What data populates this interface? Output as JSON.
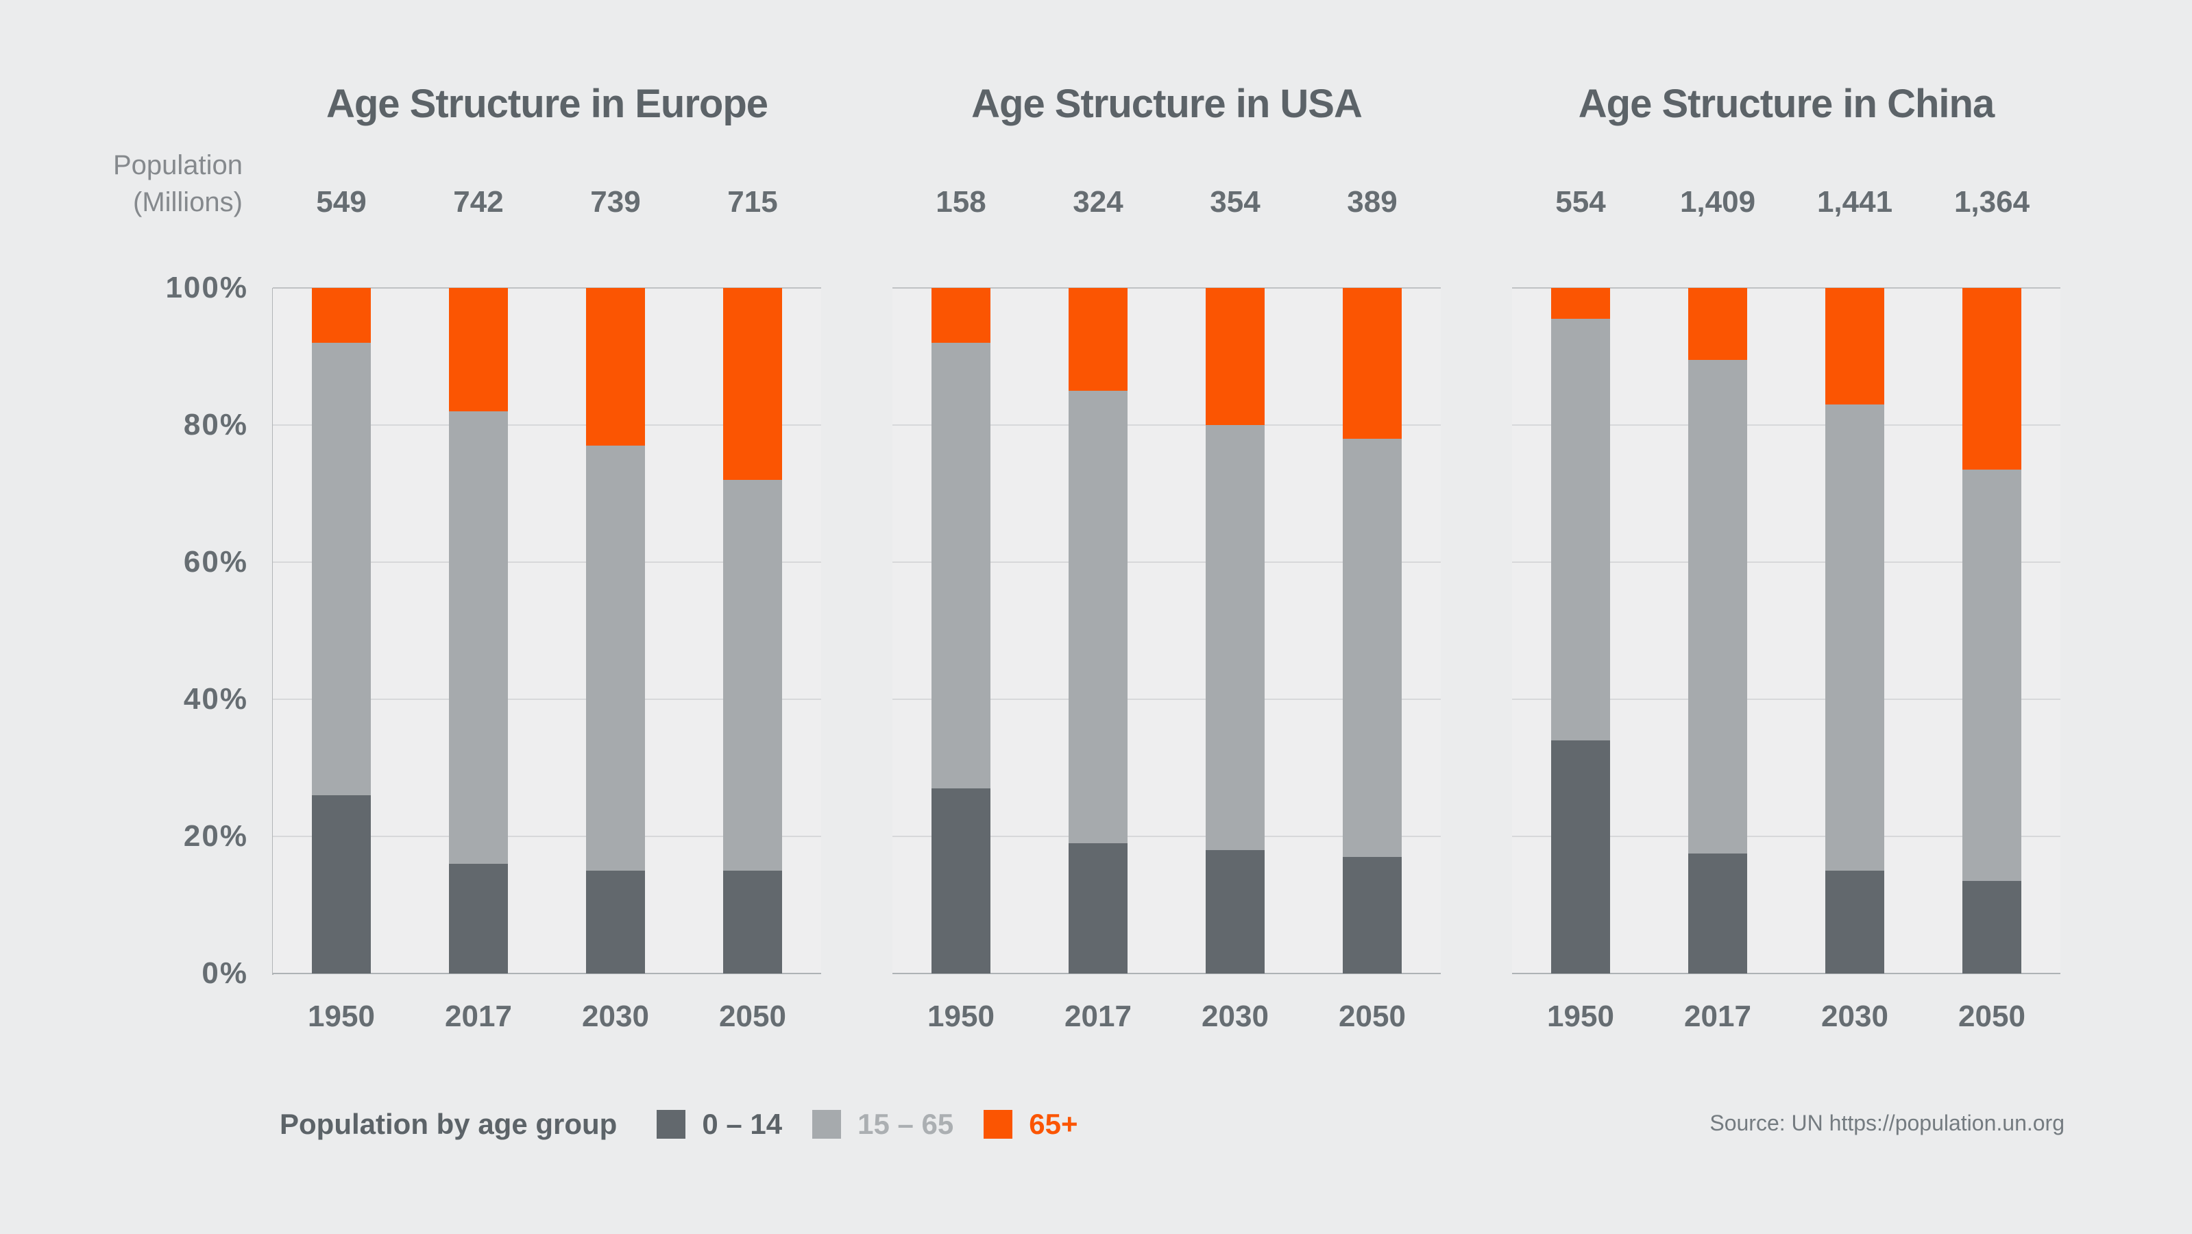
{
  "page": {
    "background": "#ebeced",
    "accent_orange": "#fb5502",
    "bar_dark_gray": "#62686d",
    "bar_light_gray": "#a6aaad"
  },
  "population_axis_label": {
    "line1": "Population",
    "line2": "(Millions)"
  },
  "y_ticks": [
    "100%",
    "80%",
    "60%",
    "40%",
    "20%",
    "0%"
  ],
  "legend": {
    "title": "Population by age group",
    "items": [
      {
        "label": "0 – 14",
        "swatch_color": "#62686d",
        "text_color": "#5c6368"
      },
      {
        "label": "15 – 65",
        "swatch_color": "#a6aaad",
        "text_color": "#abafb2"
      },
      {
        "label": "65+",
        "swatch_color": "#fb5502",
        "text_color": "#fb5502"
      }
    ]
  },
  "source": "Source: UN https://population.un.org",
  "chart_data": [
    {
      "type": "bar",
      "stacked": true,
      "units": "percent of total population",
      "id": "europe",
      "title": "Age Structure in Europe",
      "categories": [
        "1950",
        "2017",
        "2030",
        "2050"
      ],
      "population_millions": [
        "549",
        "742",
        "739",
        "715"
      ],
      "series": [
        {
          "name": "0 – 14",
          "color": "#62686d",
          "values": [
            26,
            16,
            15,
            15
          ]
        },
        {
          "name": "15 – 65",
          "color": "#a6aaad",
          "values": [
            66,
            66,
            62,
            57
          ]
        },
        {
          "name": "65+",
          "color": "#fb5502",
          "values": [
            8,
            18,
            23,
            28
          ]
        }
      ],
      "ylim": [
        0,
        100
      ],
      "ytick_values": [
        0,
        20,
        40,
        60,
        80,
        100
      ],
      "grid": "horizontal",
      "legend_position": "bottom"
    },
    {
      "type": "bar",
      "stacked": true,
      "units": "percent of total population",
      "id": "usa",
      "title": "Age Structure in USA",
      "categories": [
        "1950",
        "2017",
        "2030",
        "2050"
      ],
      "population_millions": [
        "158",
        "324",
        "354",
        "389"
      ],
      "series": [
        {
          "name": "0 – 14",
          "color": "#62686d",
          "values": [
            27,
            19,
            18,
            17
          ]
        },
        {
          "name": "15 – 65",
          "color": "#a6aaad",
          "values": [
            65,
            66,
            62,
            61
          ]
        },
        {
          "name": "65+",
          "color": "#fb5502",
          "values": [
            8,
            15,
            20,
            22
          ]
        }
      ],
      "ylim": [
        0,
        100
      ],
      "ytick_values": [
        0,
        20,
        40,
        60,
        80,
        100
      ],
      "grid": "horizontal",
      "legend_position": "bottom"
    },
    {
      "type": "bar",
      "stacked": true,
      "units": "percent of total population",
      "id": "china",
      "title": "Age Structure in China",
      "categories": [
        "1950",
        "2017",
        "2030",
        "2050"
      ],
      "population_millions": [
        "554",
        "1,409",
        "1,441",
        "1,364"
      ],
      "series": [
        {
          "name": "0 – 14",
          "color": "#62686d",
          "values": [
            34,
            17.5,
            15,
            13.5
          ]
        },
        {
          "name": "15 – 65",
          "color": "#a6aaad",
          "values": [
            61.5,
            72,
            68,
            60
          ]
        },
        {
          "name": "65+",
          "color": "#fb5502",
          "values": [
            4.5,
            10.5,
            17,
            26.5
          ]
        }
      ],
      "ylim": [
        0,
        100
      ],
      "ytick_values": [
        0,
        20,
        40,
        60,
        80,
        100
      ],
      "grid": "horizontal",
      "legend_position": "bottom"
    }
  ]
}
